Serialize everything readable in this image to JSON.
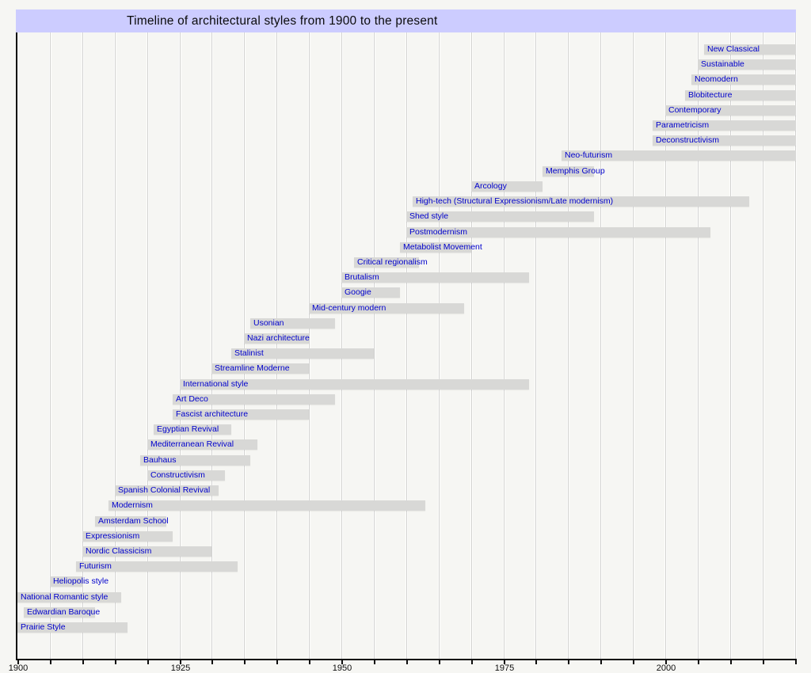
{
  "header": {
    "title": "Timeline of architectural styles from 1900 to the present"
  },
  "chart_data": {
    "type": "bar",
    "subtype": "horizontal-gantt-timeline",
    "title": "Timeline of architectural styles from 1900 to the present",
    "xlabel": "",
    "ylabel": "",
    "x_axis": {
      "min": 1900,
      "max": 2020,
      "minor_tick_interval": 5,
      "major_label_interval": 25,
      "tick_labels": [
        "1900",
        "1925",
        "1950",
        "1975",
        "2000"
      ]
    },
    "grid": "vertical, every 5 years",
    "legend_position": "none",
    "bar_label_position": "inside-left at bar start, may overflow bar",
    "styles": [
      {
        "label": "New Classical",
        "start": 2006,
        "end": 2020,
        "to_present": true
      },
      {
        "label": "Sustainable",
        "start": 2005,
        "end": 2020,
        "to_present": true
      },
      {
        "label": "Neomodern",
        "start": 2004,
        "end": 2020,
        "to_present": true
      },
      {
        "label": "Blobitecture",
        "start": 2003,
        "end": 2020,
        "to_present": true
      },
      {
        "label": "Contemporary",
        "start": 2000,
        "end": 2020,
        "to_present": true
      },
      {
        "label": "Parametricism",
        "start": 1998,
        "end": 2020,
        "to_present": true
      },
      {
        "label": "Deconstructivism",
        "start": 1998,
        "end": 2020,
        "to_present": true
      },
      {
        "label": "Neo-futurism",
        "start": 1984,
        "end": 2020,
        "to_present": true
      },
      {
        "label": "Memphis Group",
        "start": 1981,
        "end": 1989,
        "to_present": false
      },
      {
        "label": "Arcology",
        "start": 1970,
        "end": 1981,
        "to_present": false
      },
      {
        "label": "High-tech (Structural Expressionism/Late modernism)",
        "start": 1961,
        "end": 2013,
        "to_present": false
      },
      {
        "label": "Shed style",
        "start": 1960,
        "end": 1989,
        "to_present": false
      },
      {
        "label": "Postmodernism",
        "start": 1960,
        "end": 2007,
        "to_present": false
      },
      {
        "label": "Metabolist Movement",
        "start": 1959,
        "end": 1970,
        "to_present": false
      },
      {
        "label": "Critical regionalism",
        "start": 1952,
        "end": 1962,
        "to_present": false
      },
      {
        "label": "Brutalism",
        "start": 1950,
        "end": 1979,
        "to_present": false
      },
      {
        "label": "Googie",
        "start": 1950,
        "end": 1959,
        "to_present": false
      },
      {
        "label": "Mid-century modern",
        "start": 1945,
        "end": 1969,
        "to_present": false
      },
      {
        "label": "Usonian",
        "start": 1936,
        "end": 1949,
        "to_present": false
      },
      {
        "label": "Nazi architecture",
        "start": 1935,
        "end": 1945,
        "to_present": false
      },
      {
        "label": "Stalinist",
        "start": 1933,
        "end": 1955,
        "to_present": false
      },
      {
        "label": "Streamline Moderne",
        "start": 1930,
        "end": 1945,
        "to_present": false
      },
      {
        "label": "International style",
        "start": 1925,
        "end": 1979,
        "to_present": false
      },
      {
        "label": "Art Deco",
        "start": 1924,
        "end": 1949,
        "to_present": false
      },
      {
        "label": "Fascist architecture",
        "start": 1924,
        "end": 1945,
        "to_present": false
      },
      {
        "label": "Egyptian Revival",
        "start": 1921,
        "end": 1933,
        "to_present": false
      },
      {
        "label": "Mediterranean Revival",
        "start": 1920,
        "end": 1937,
        "to_present": false
      },
      {
        "label": "Bauhaus",
        "start": 1919,
        "end": 1936,
        "to_present": false
      },
      {
        "label": "Constructivism",
        "start": 1920,
        "end": 1932,
        "to_present": false
      },
      {
        "label": "Spanish Colonial Revival",
        "start": 1915,
        "end": 1931,
        "to_present": false
      },
      {
        "label": "Modernism",
        "start": 1914,
        "end": 1963,
        "to_present": false
      },
      {
        "label": "Amsterdam School",
        "start": 1912,
        "end": 1923,
        "to_present": false
      },
      {
        "label": "Expressionism",
        "start": 1910,
        "end": 1924,
        "to_present": false
      },
      {
        "label": "Nordic Classicism",
        "start": 1910,
        "end": 1930,
        "to_present": false
      },
      {
        "label": "Futurism",
        "start": 1909,
        "end": 1934,
        "to_present": false
      },
      {
        "label": "Heliopolis style",
        "start": 1905,
        "end": 1910,
        "to_present": false
      },
      {
        "label": "National Romantic style",
        "start": 1900,
        "end": 1916,
        "to_present": false
      },
      {
        "label": "Edwardian Baroque",
        "start": 1901,
        "end": 1912,
        "to_present": false
      },
      {
        "label": "Prairie Style",
        "start": 1900,
        "end": 1917,
        "to_present": false
      }
    ]
  },
  "colors": {
    "title_background": "#ccccff",
    "page_background": "#f6f6f3",
    "bar_fill": "#d8d8d6",
    "bar_label_text": "#0000cc",
    "axis": "#0e0e0e",
    "gridline": "#d2d2d0",
    "title_text": "#0b0b0b"
  }
}
